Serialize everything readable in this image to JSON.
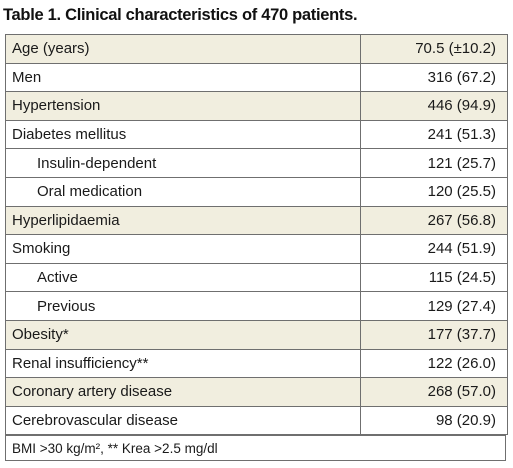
{
  "caption": "Table 1. Clinical characteristics of 470 patients.",
  "rows": [
    {
      "label": "Age (years)",
      "value": "70.5 (±10.2)",
      "shaded": true,
      "sub": false
    },
    {
      "label": "Men",
      "value": "316 (67.2)",
      "shaded": false,
      "sub": false
    },
    {
      "label": "Hypertension",
      "value": "446 (94.9)",
      "shaded": true,
      "sub": false
    },
    {
      "label": "Diabetes mellitus",
      "value": "241 (51.3)",
      "shaded": false,
      "sub": false
    },
    {
      "label": "Insulin-dependent",
      "value": "121 (25.7)",
      "shaded": false,
      "sub": true
    },
    {
      "label": "Oral medication",
      "value": "120 (25.5)",
      "shaded": false,
      "sub": true
    },
    {
      "label": "Hyperlipidaemia",
      "value": "267 (56.8)",
      "shaded": true,
      "sub": false
    },
    {
      "label": "Smoking",
      "value": "244 (51.9)",
      "shaded": false,
      "sub": false
    },
    {
      "label": "Active",
      "value": "115 (24.5)",
      "shaded": false,
      "sub": true
    },
    {
      "label": "Previous",
      "value": "129 (27.4)",
      "shaded": false,
      "sub": true
    },
    {
      "label": "Obesity*",
      "value": "177 (37.7)",
      "shaded": true,
      "sub": false
    },
    {
      "label": "Renal insufficiency**",
      "value": "122 (26.0)",
      "shaded": false,
      "sub": false
    },
    {
      "label": "Coronary artery disease",
      "value": "268 (57.0)",
      "shaded": true,
      "sub": false
    },
    {
      "label": "Cerebrovascular disease",
      "value": "98 (20.9)",
      "shaded": false,
      "sub": false
    }
  ],
  "footnote": "BMI >30 kg/m², ** Krea >2.5 mg/dl",
  "colors": {
    "shaded_row_background": "#f1eedf",
    "border": "#6f6f6f"
  }
}
